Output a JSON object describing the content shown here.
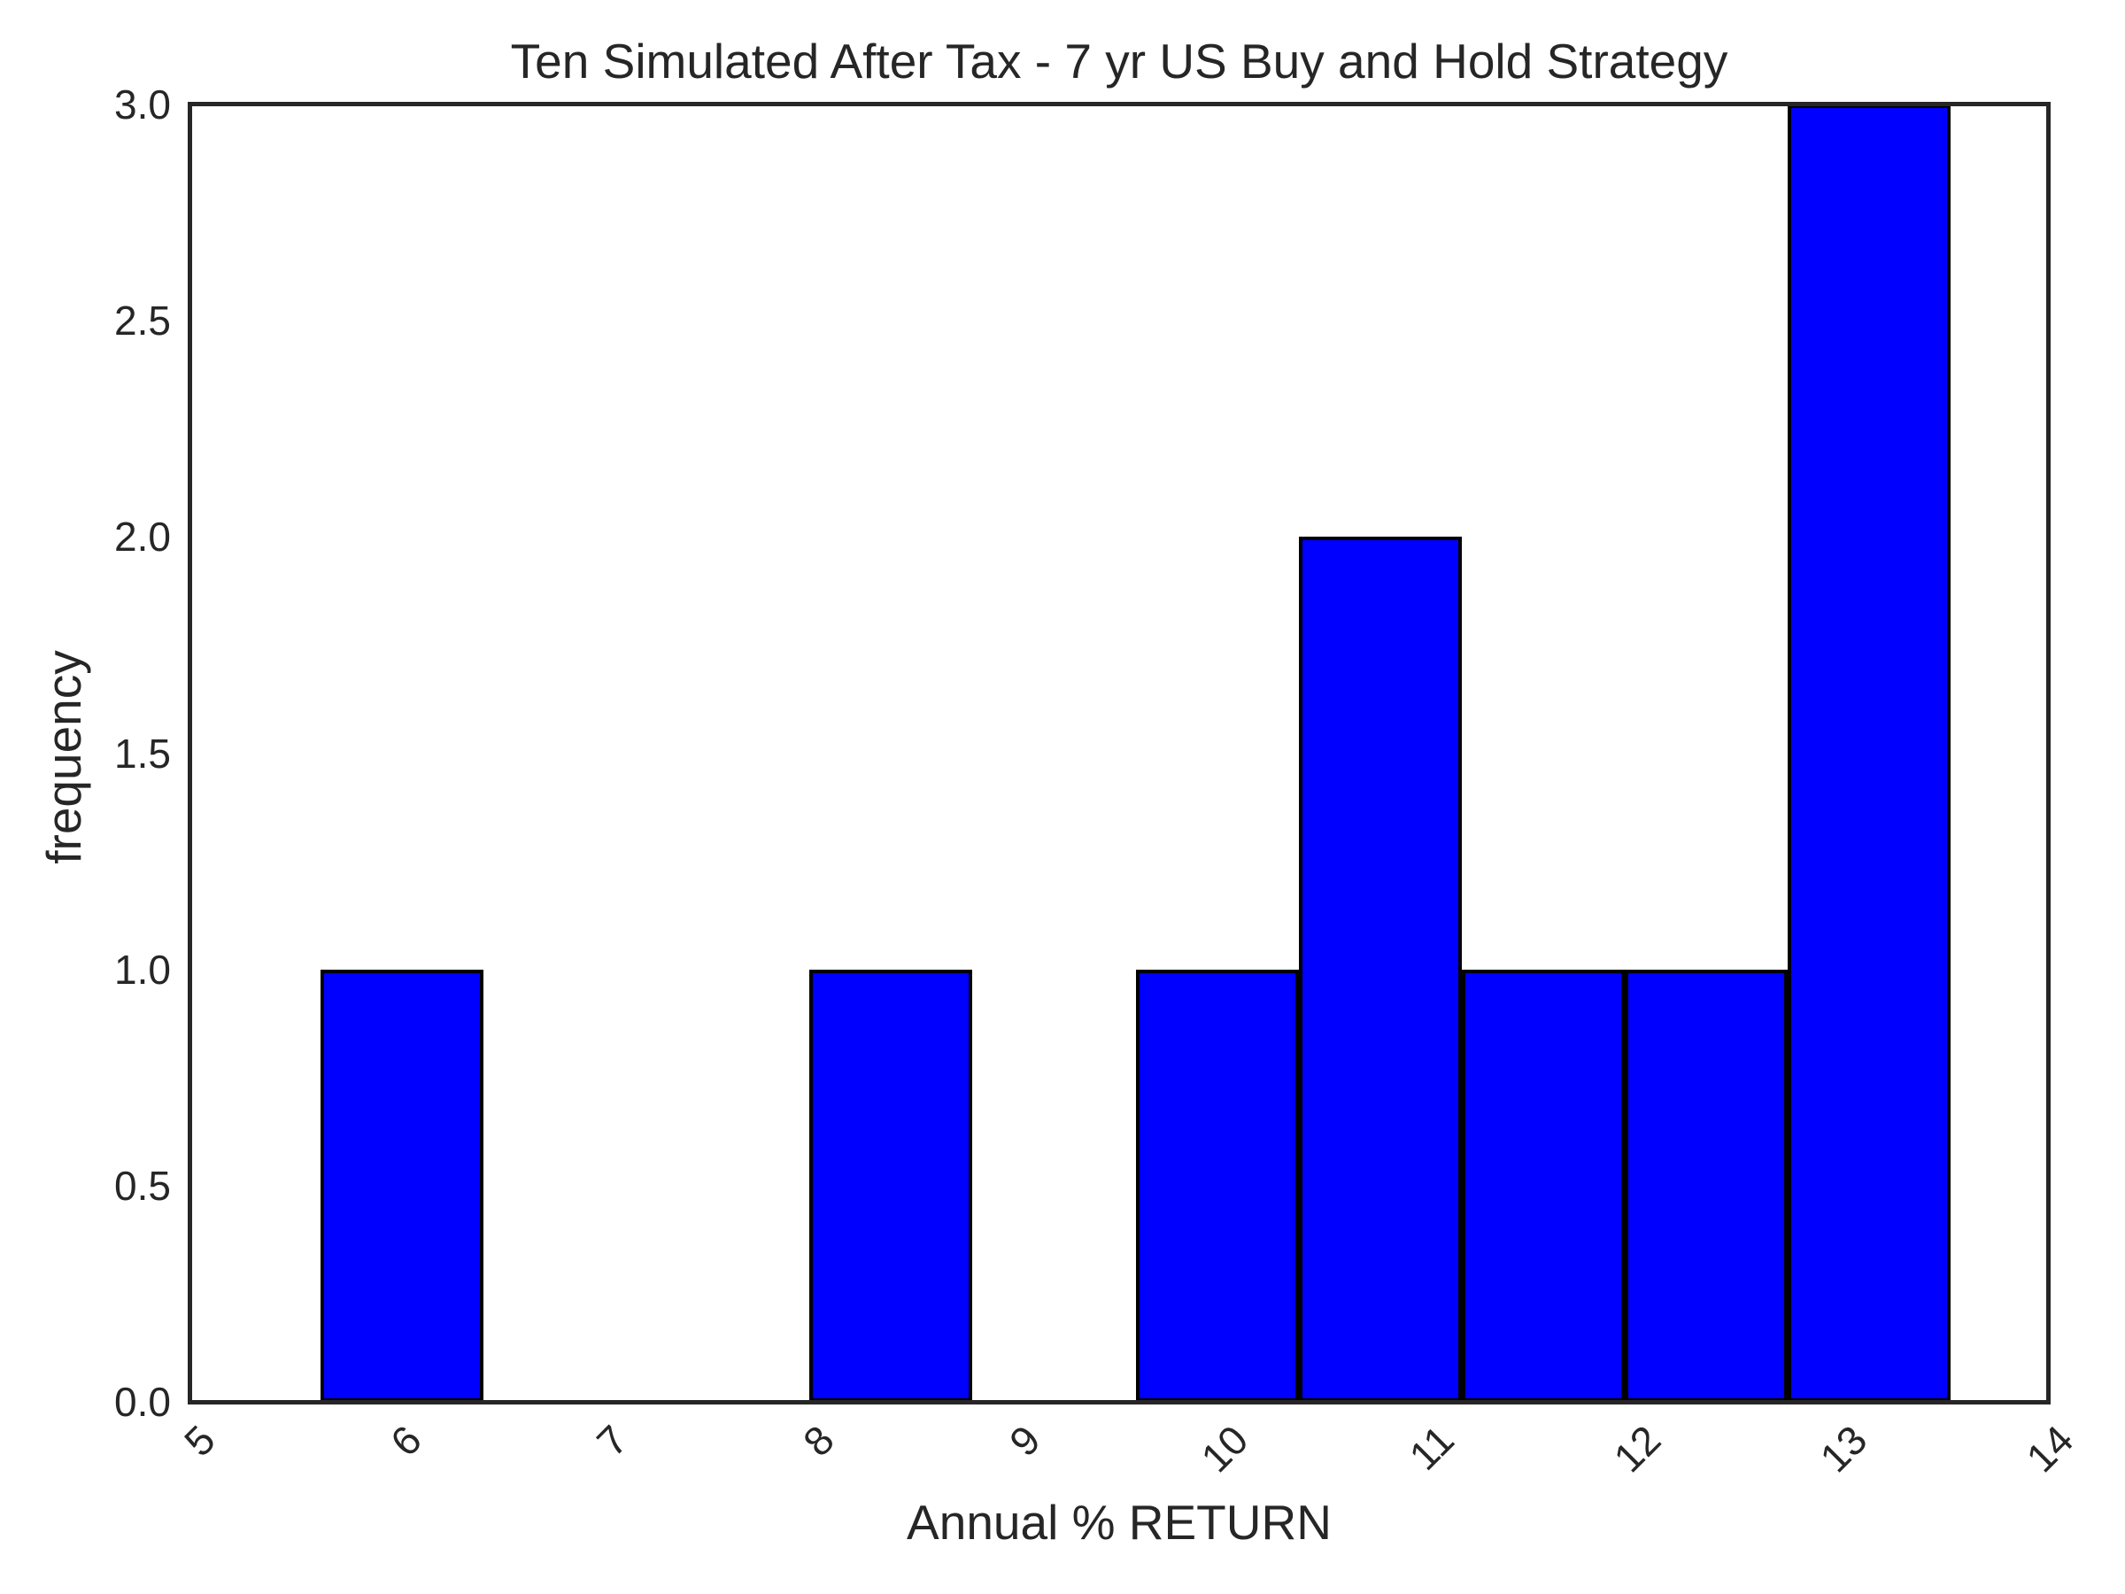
{
  "chart_data": {
    "type": "bar",
    "subtype": "histogram",
    "title": "Ten Simulated After Tax - 7 yr US Buy and Hold Strategy",
    "xlabel": "Annual % RETURN",
    "ylabel": "frequency",
    "n_samples": 10,
    "bin_edges": [
      5.63,
      6.42,
      7.21,
      8.0,
      8.79,
      9.58,
      10.37,
      11.16,
      11.95,
      12.74,
      13.53
    ],
    "frequencies": [
      1,
      0,
      0,
      1,
      0,
      1,
      2,
      1,
      1,
      3
    ],
    "x_ticks": [
      "5",
      "6",
      "7",
      "8",
      "9",
      "10",
      "11",
      "12",
      "13",
      "14"
    ],
    "y_ticks": [
      "0.0",
      "0.5",
      "1.0",
      "1.5",
      "2.0",
      "2.5",
      "3.0"
    ],
    "xlim": [
      5,
      14
    ],
    "ylim": [
      0,
      3
    ],
    "x_tick_rotation_deg": 45,
    "grid": false,
    "legend": false,
    "colors": {
      "bar_fill": "#0000ff",
      "bar_edge": "#000000",
      "spine": "#262626",
      "text": "#262626",
      "background": "#ffffff"
    }
  }
}
